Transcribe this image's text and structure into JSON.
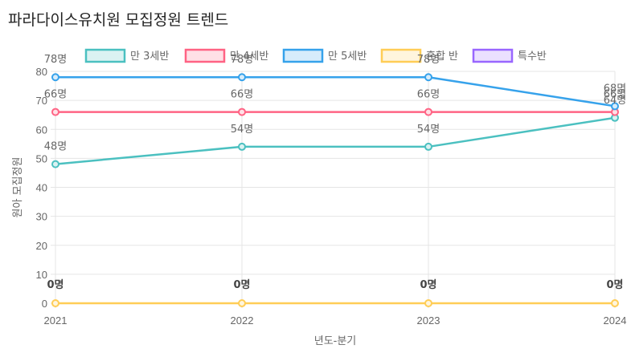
{
  "chart_data": {
    "type": "line",
    "title": "파라다이스유치원 모집정원 트렌드",
    "xlabel": "년도-분기",
    "ylabel": "원아 모집정원",
    "categories": [
      "2021",
      "2022",
      "2023",
      "2024"
    ],
    "y_ticks": [
      "0",
      "10",
      "20",
      "30",
      "40",
      "50",
      "60",
      "70",
      "80"
    ],
    "ylim": [
      0,
      80
    ],
    "label_suffix": "명",
    "series": [
      {
        "name": "만 3세반",
        "values": [
          48,
          54,
          54,
          64
        ],
        "color": "#4bc0c0",
        "fill": "#dbf2f2"
      },
      {
        "name": "만 4세반",
        "values": [
          66,
          66,
          66,
          66
        ],
        "color": "#ff6384",
        "fill": "#ffe0e6"
      },
      {
        "name": "만 5세반",
        "values": [
          78,
          78,
          78,
          68
        ],
        "color": "#36a2eb",
        "fill": "#d7ecfb"
      },
      {
        "name": "혼합 반",
        "values": [
          0,
          0,
          0,
          0
        ],
        "color": "#ffcd56",
        "fill": "#fff5dd"
      },
      {
        "name": "특수반",
        "values": [
          null,
          null,
          null,
          null
        ],
        "color": "#9966ff",
        "fill": "#ebe0ff"
      }
    ]
  }
}
